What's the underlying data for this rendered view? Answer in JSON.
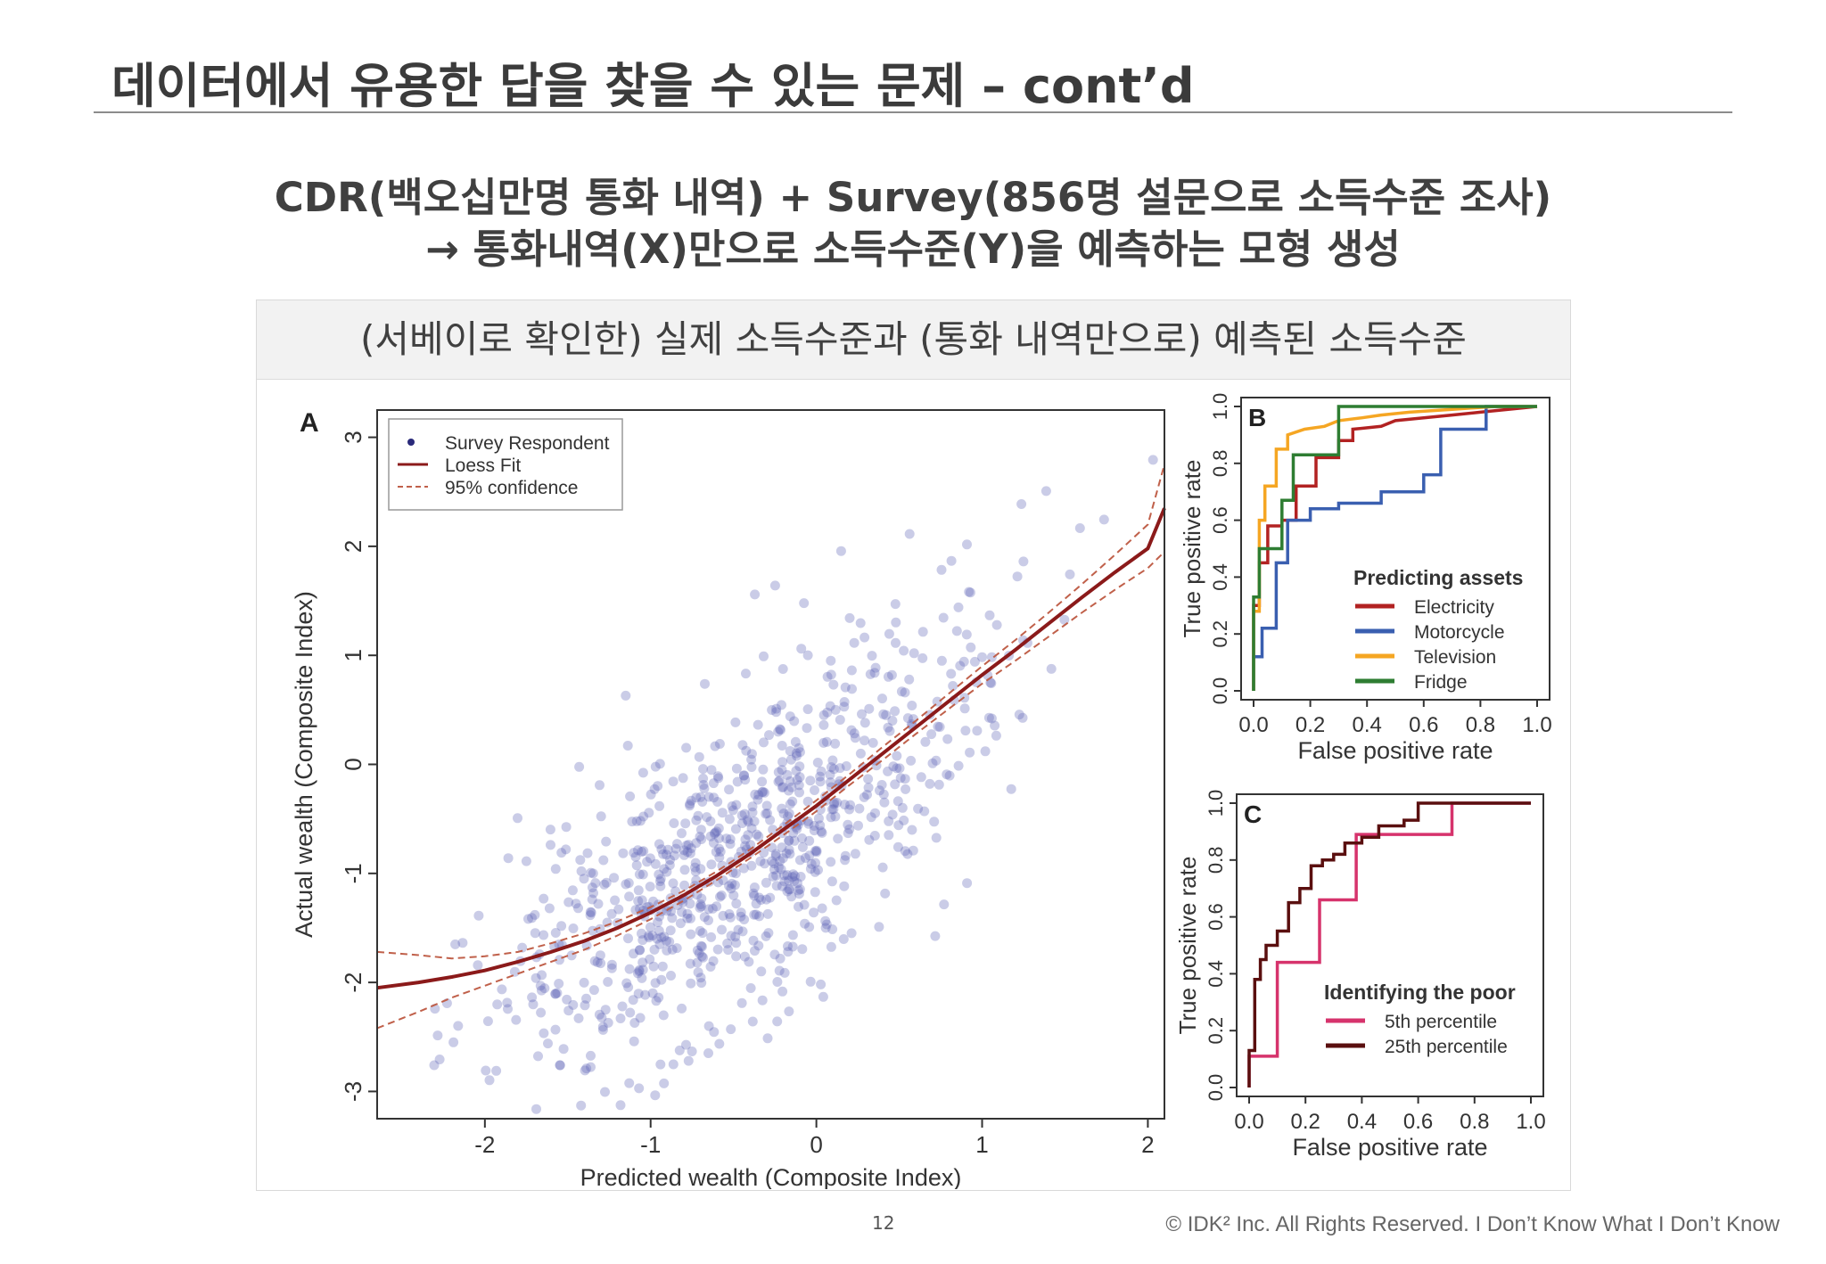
{
  "slide": {
    "title": "데이터에서 유용한 답을 찾을 수 있는 문제 – cont’d",
    "subtitle_line1": "CDR(백오십만명 통화 내역) + Survey(856명 설문으로 소득수준 조사)",
    "subtitle_line2": "→ 통화내역(X)만으로 소득수준(Y)을 예측하는 모형 생성",
    "panel_header": "(서베이로 확인한) 실제 소득수준과 (통화 내역만으로) 예측된 소득수준",
    "page_number": "12",
    "copyright": "© IDK² Inc. All Rights Reserved.  I Don’t Know What I Don’t Know"
  },
  "chart_data": [
    {
      "id": "A",
      "type": "scatter",
      "panel_label": "A",
      "xlabel": "Predicted wealth (Composite Index)",
      "ylabel": "Actual wealth (Composite Index)",
      "xlim": [
        -2.65,
        2.1
      ],
      "ylim": [
        -3.25,
        3.25
      ],
      "xticks": [
        "-2",
        "-1",
        "0",
        "1",
        "2"
      ],
      "yticks": [
        "-3",
        "-2",
        "-1",
        "0",
        "1",
        "2",
        "3"
      ],
      "legend": [
        "Survey Respondent",
        "Loess Fit",
        "95% confidence"
      ],
      "point_count": 856,
      "loess_fit": {
        "x": [
          -2.65,
          -2.4,
          -2.2,
          -2.0,
          -1.8,
          -1.6,
          -1.4,
          -1.2,
          -1.0,
          -0.8,
          -0.6,
          -0.4,
          -0.2,
          0.0,
          0.2,
          0.4,
          0.6,
          0.8,
          1.0,
          1.2,
          1.4,
          1.6,
          1.8,
          2.0,
          2.1
        ],
        "y": [
          -2.05,
          -2.0,
          -1.95,
          -1.89,
          -1.81,
          -1.72,
          -1.62,
          -1.5,
          -1.36,
          -1.2,
          -1.02,
          -0.82,
          -0.6,
          -0.38,
          -0.14,
          0.1,
          0.34,
          0.58,
          0.82,
          1.05,
          1.29,
          1.53,
          1.76,
          1.98,
          2.35
        ]
      },
      "conf_upper": [
        -1.72,
        -1.75,
        -1.78,
        -1.76,
        -1.72,
        -1.64,
        -1.55,
        -1.44,
        -1.31,
        -1.16,
        -0.98,
        -0.78,
        -0.56,
        -0.33,
        -0.09,
        0.16,
        0.4,
        0.65,
        0.9,
        1.14,
        1.39,
        1.65,
        1.92,
        2.2,
        2.75
      ],
      "conf_lower": [
        -2.42,
        -2.27,
        -2.14,
        -2.03,
        -1.92,
        -1.81,
        -1.7,
        -1.57,
        -1.42,
        -1.25,
        -1.06,
        -0.86,
        -0.65,
        -0.43,
        -0.19,
        0.04,
        0.28,
        0.51,
        0.74,
        0.95,
        1.17,
        1.39,
        1.6,
        1.8,
        1.95
      ]
    },
    {
      "id": "B",
      "type": "line",
      "panel_label": "B",
      "legend_title": "Predicting assets",
      "xlabel": "False positive rate",
      "ylabel": "True positive rate",
      "xlim": [
        0,
        1
      ],
      "ylim": [
        0,
        1
      ],
      "xticks": [
        "0.0",
        "0.2",
        "0.4",
        "0.6",
        "0.8",
        "1.0"
      ],
      "yticks": [
        "0.0",
        "0.2",
        "0.4",
        "0.6",
        "0.8",
        "1.0"
      ],
      "series": [
        {
          "name": "Electricity",
          "color": "#b22222",
          "x": [
            0,
            0,
            0.02,
            0.02,
            0.05,
            0.05,
            0.1,
            0.1,
            0.15,
            0.15,
            0.22,
            0.22,
            0.3,
            0.3,
            0.35,
            0.35,
            0.45,
            0.5,
            0.7,
            0.8,
            1.0
          ],
          "y": [
            0,
            0.3,
            0.3,
            0.45,
            0.45,
            0.58,
            0.58,
            0.6,
            0.6,
            0.72,
            0.72,
            0.82,
            0.82,
            0.88,
            0.88,
            0.92,
            0.93,
            0.95,
            0.97,
            0.98,
            1.0
          ]
        },
        {
          "name": "Motorcycle",
          "color": "#3a5fb0",
          "x": [
            0,
            0,
            0.03,
            0.03,
            0.08,
            0.08,
            0.12,
            0.12,
            0.2,
            0.2,
            0.3,
            0.3,
            0.45,
            0.45,
            0.6,
            0.6,
            0.66,
            0.66,
            0.82,
            0.82,
            1.0
          ],
          "y": [
            0,
            0.12,
            0.12,
            0.22,
            0.22,
            0.45,
            0.45,
            0.6,
            0.6,
            0.64,
            0.64,
            0.66,
            0.66,
            0.7,
            0.7,
            0.76,
            0.76,
            0.92,
            0.92,
            1.0,
            1.0
          ]
        },
        {
          "name": "Television",
          "color": "#f5a623",
          "x": [
            0,
            0,
            0.02,
            0.02,
            0.04,
            0.04,
            0.08,
            0.08,
            0.12,
            0.12,
            0.18,
            0.25,
            0.3,
            0.38,
            0.45,
            0.55,
            0.7,
            0.85,
            1.0
          ],
          "y": [
            0,
            0.28,
            0.28,
            0.6,
            0.6,
            0.72,
            0.72,
            0.85,
            0.85,
            0.9,
            0.92,
            0.93,
            0.95,
            0.96,
            0.97,
            0.98,
            0.99,
            1.0,
            1.0
          ]
        },
        {
          "name": "Fridge",
          "color": "#2e7d32",
          "x": [
            0,
            0,
            0.02,
            0.02,
            0.1,
            0.1,
            0.14,
            0.14,
            0.3,
            0.3,
            1.0
          ],
          "y": [
            0,
            0.33,
            0.33,
            0.5,
            0.5,
            0.67,
            0.67,
            0.83,
            0.83,
            1.0,
            1.0
          ]
        }
      ]
    },
    {
      "id": "C",
      "type": "line",
      "panel_label": "C",
      "legend_title": "Identifying the poor",
      "xlabel": "False positive rate",
      "ylabel": "True positive rate",
      "xlim": [
        0,
        1
      ],
      "ylim": [
        0,
        1
      ],
      "xticks": [
        "0.0",
        "0.2",
        "0.4",
        "0.6",
        "0.8",
        "1.0"
      ],
      "yticks": [
        "0.0",
        "0.2",
        "0.4",
        "0.6",
        "0.8",
        "1.0"
      ],
      "series": [
        {
          "name": "5th percentile",
          "color": "#d6336c",
          "x": [
            0,
            0,
            0.02,
            0.02,
            0.1,
            0.1,
            0.25,
            0.25,
            0.38,
            0.38,
            0.72,
            0.72,
            1.0
          ],
          "y": [
            0,
            0.11,
            0.11,
            0.11,
            0.11,
            0.44,
            0.44,
            0.66,
            0.66,
            0.89,
            0.89,
            1.0,
            1.0
          ]
        },
        {
          "name": "25th percentile",
          "color": "#5a0f0f",
          "x": [
            0,
            0,
            0.02,
            0.02,
            0.04,
            0.04,
            0.06,
            0.06,
            0.1,
            0.1,
            0.14,
            0.14,
            0.18,
            0.18,
            0.22,
            0.22,
            0.26,
            0.26,
            0.3,
            0.3,
            0.34,
            0.34,
            0.4,
            0.4,
            0.46,
            0.46,
            0.55,
            0.55,
            0.6,
            0.6,
            1.0
          ],
          "y": [
            0,
            0.13,
            0.13,
            0.38,
            0.38,
            0.45,
            0.45,
            0.5,
            0.5,
            0.55,
            0.55,
            0.65,
            0.65,
            0.7,
            0.7,
            0.78,
            0.78,
            0.8,
            0.8,
            0.82,
            0.82,
            0.86,
            0.86,
            0.88,
            0.88,
            0.92,
            0.92,
            0.94,
            0.94,
            1.0,
            1.0
          ]
        }
      ]
    }
  ]
}
